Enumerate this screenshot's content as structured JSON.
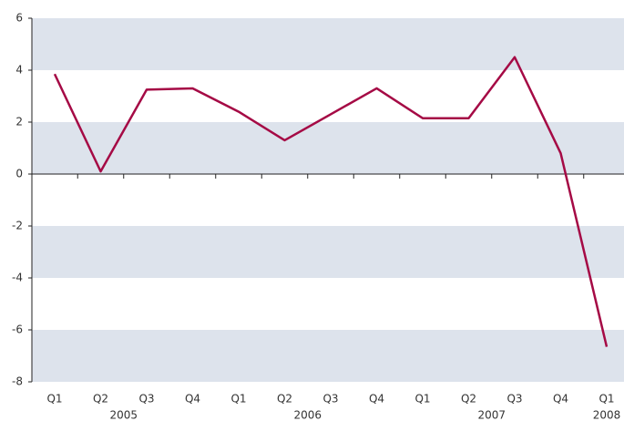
{
  "chart_data": {
    "type": "line",
    "categories": [
      "Q1",
      "Q2",
      "Q3",
      "Q4",
      "Q1",
      "Q2",
      "Q3",
      "Q4",
      "Q1",
      "Q2",
      "Q3",
      "Q4",
      "Q1"
    ],
    "years": [
      "2005",
      null,
      null,
      null,
      "2006",
      null,
      null,
      null,
      "2007",
      null,
      null,
      null,
      "2008"
    ],
    "series": [
      {
        "color": "#a50a45",
        "values": [
          3.85,
          0.1,
          3.25,
          3.3,
          2.4,
          1.3,
          2.3,
          3.3,
          2.15,
          2.15,
          4.5,
          0.8,
          -6.65
        ]
      }
    ],
    "ylim": [
      -8,
      6
    ],
    "yticks": [
      -8,
      -6,
      -4,
      -2,
      0,
      2,
      4,
      6
    ],
    "band_color": "#dde3ec"
  }
}
